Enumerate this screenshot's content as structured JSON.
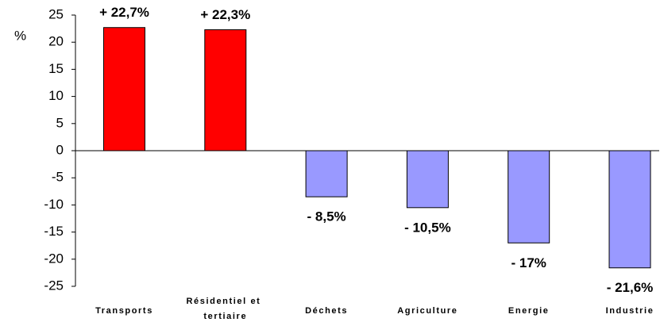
{
  "chart_data": {
    "type": "bar",
    "y_label": "%",
    "categories": [
      "Transports",
      "Résidentiel et tertiaire",
      "Déchets",
      "Agriculture",
      "Energie",
      "Industrie"
    ],
    "values": [
      22.7,
      22.3,
      -8.5,
      -10.5,
      -17,
      -21.6
    ],
    "value_labels": [
      "+ 22,7%",
      "+ 22,3%",
      "- 8,5%",
      "- 10,5%",
      "- 17%",
      "- 21,6%"
    ],
    "colors": [
      "#ff0000",
      "#ff0000",
      "#9999ff",
      "#9999ff",
      "#9999ff",
      "#9999ff"
    ],
    "ylim": [
      -25,
      25
    ],
    "yticks": [
      -25,
      -20,
      -15,
      -10,
      -5,
      0,
      5,
      10,
      15,
      20,
      25
    ]
  }
}
